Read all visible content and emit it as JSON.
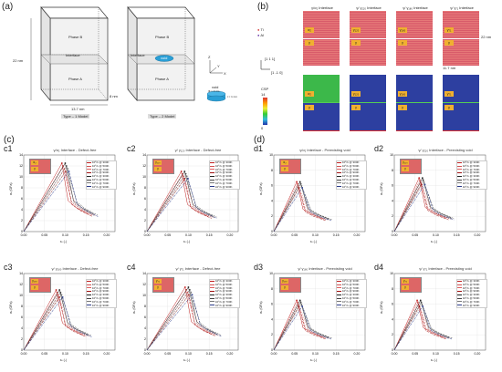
{
  "panel_labels": {
    "a": "(a)",
    "b": "(b)",
    "c": "(c)",
    "d": "(d)"
  },
  "panel_a": {
    "box1": {
      "top": "Phase B",
      "mid": "Interface",
      "bottom": "Phase A",
      "height": "22 nm",
      "width": "13.7 nm",
      "depth": "8 nm",
      "caption": "Type – 1 Model"
    },
    "box2": {
      "top": "Phase B",
      "mid": "Interface",
      "void": "void",
      "bottom": "Phase A",
      "caption": "Type – 2 Model"
    },
    "void_detail": {
      "label": "void",
      "diam": "Φ ≈ 4 nm",
      "thick": "t ≈ 1 nm"
    },
    "axes": {
      "x": "X",
      "y": "Y",
      "z": "Z"
    }
  },
  "panel_b": {
    "legend": [
      {
        "sym": "Ti",
        "color": "#d43a3a"
      },
      {
        "sym": "Al",
        "color": "#6a3aa8"
      }
    ],
    "titles": [
      "γ/α₂ Interface",
      "γ/ γ₁₂₀ Interface",
      "γ/ γ₁₈₀ Interface",
      "γ/ γ₇₁ Interface"
    ],
    "top_tags": [
      "α₂",
      "γ₁₂₀",
      "γ₁₈₀",
      "γ₇₁"
    ],
    "gamma": "γ",
    "dim_h": "22 nm",
    "dim_w": "11.7 nm",
    "dir1": "[1 1 1]",
    "dir2": "[1 -1 0]",
    "csp": {
      "title": "CSP",
      "max": "14",
      "mid": "7",
      "min": "0"
    }
  },
  "plots": [
    {
      "id": "c1",
      "title": "γ/α₂ Interface - Defect-free",
      "tag": "α₂",
      "ymax": 14,
      "peak": [
        0.1,
        12.5
      ]
    },
    {
      "id": "c2",
      "title": "γ/ γ₁₂₀ Interface - Defect-free",
      "tag": "γ₁₂₀",
      "ymax": 14,
      "peak": [
        0.09,
        11.0
      ]
    },
    {
      "id": "c3",
      "title": "γ/ γ₁₈₀ Interface - Defect-free",
      "tag": "γ₁₈₀",
      "ymax": 14,
      "peak": [
        0.085,
        11.0
      ]
    },
    {
      "id": "c4",
      "title": "γ/ γ₇₁ Interface - Defect-free",
      "tag": "γ₇₁",
      "ymax": 14,
      "peak": [
        0.1,
        11.5
      ]
    },
    {
      "id": "d1",
      "title": "γ/α₂ Interface - Preexisting void",
      "tag": "α₂",
      "ymax": 10,
      "peak": [
        0.06,
        6.5
      ]
    },
    {
      "id": "d2",
      "title": "γ/ γ₁₂₀ Interface - Preexisting void",
      "tag": "γ₁₂₀",
      "ymax": 10,
      "peak": [
        0.065,
        7.0
      ]
    },
    {
      "id": "d3",
      "title": "γ/ γ₁₈₀ Interface - Preexisting void",
      "tag": "γ₁₈₀",
      "ymax": 10,
      "peak": [
        0.06,
        6.5
      ]
    },
    {
      "id": "d4",
      "title": "γ/ γ₇₁ Interface - Preexisting void",
      "tag": "γ₇₁",
      "ymax": 10,
      "peak": [
        0.06,
        6.5
      ]
    }
  ],
  "legend_entries": [
    "10⁸/s @ 300K",
    "10⁸/s @ 500K",
    "10⁸/s @ 700K",
    "10⁸/s @ 900K",
    "10⁹/s @ 300K",
    "10⁹/s @ 500K",
    "10⁹/s @ 700K",
    "10⁹/s @ 900K"
  ],
  "axis": {
    "ylabel": "σᵢᵢ (GPa)",
    "xlabel": "εᵢᵢ (-)",
    "xticks": [
      "0.00",
      "0.05",
      "0.10",
      "0.15",
      "0.20"
    ]
  },
  "colors": {
    "phase": "#d8d8d8",
    "cyl": "#2a9fd6",
    "tiRed": "#d44a5a",
    "blueCsp": "#2d3fa0",
    "greenCsp": "#3cb84a",
    "tag": "#f0b030"
  }
}
